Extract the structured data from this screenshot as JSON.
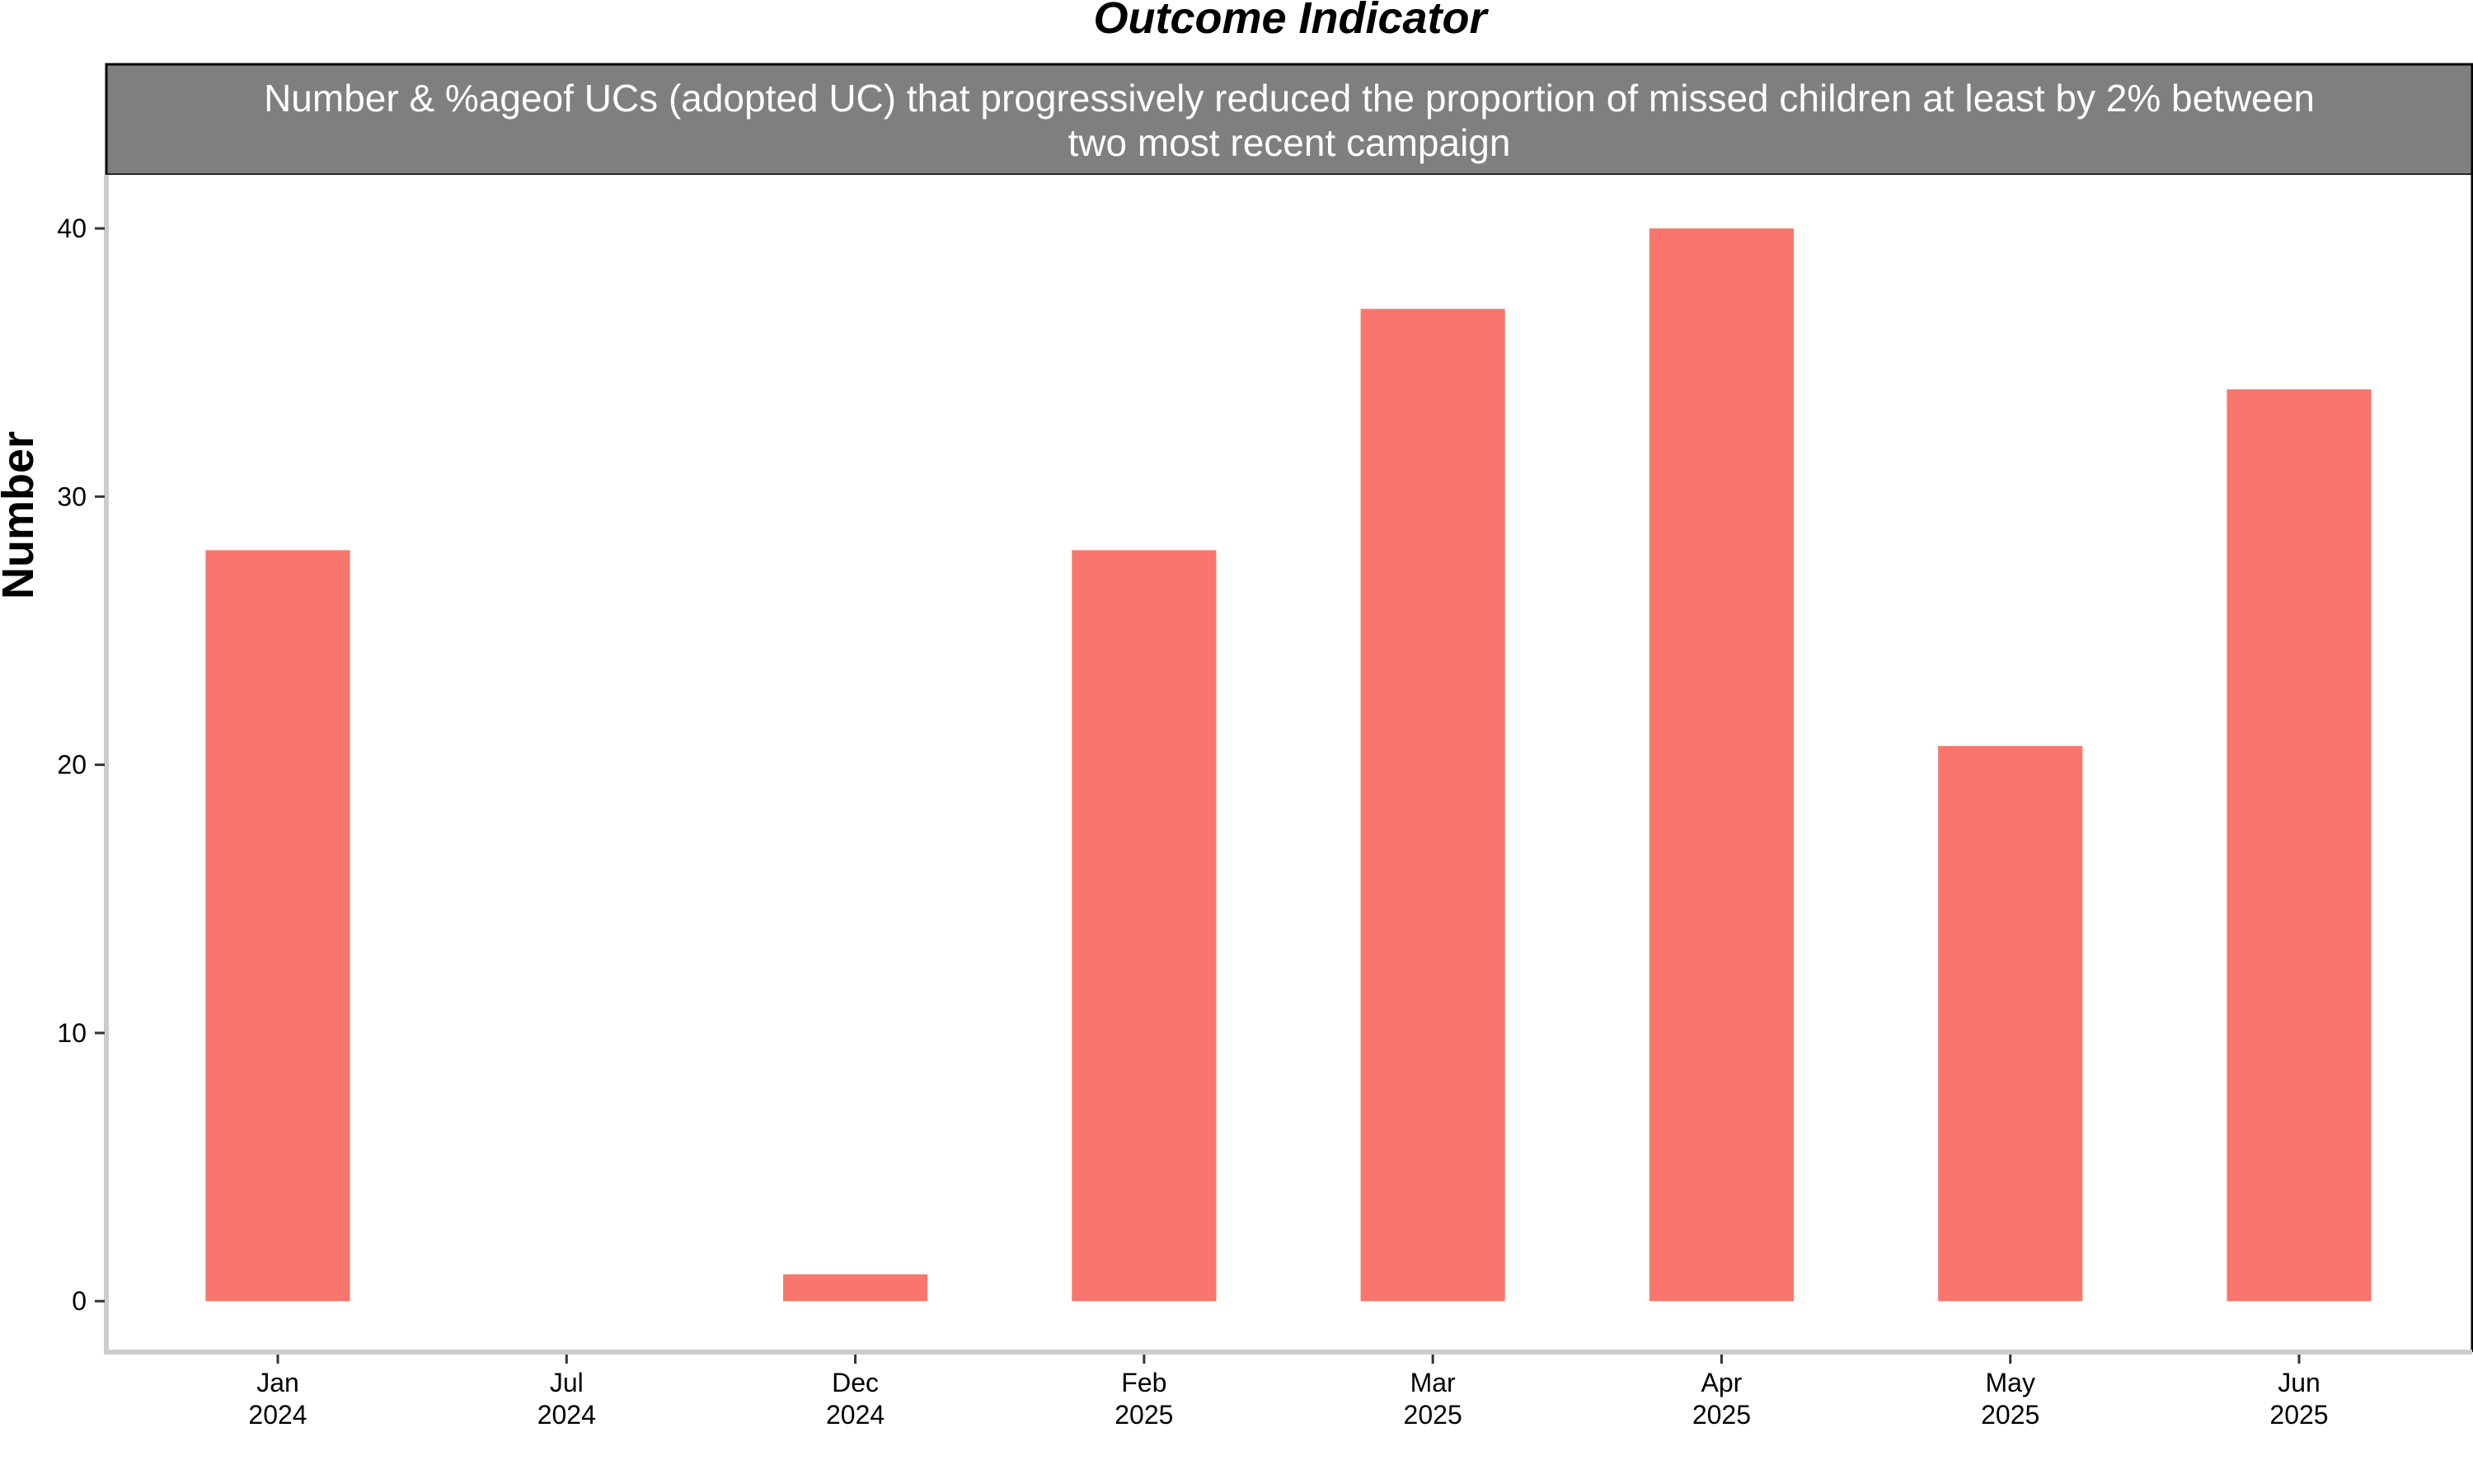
{
  "chart_data": {
    "type": "bar",
    "title": "Outcome Indicator",
    "panel_strip": [
      "Number & %ageof UCs (adopted UC) that progressively reduced the proportion of missed children at least by 2% between",
      "two most recent campaign"
    ],
    "ylabel": "Number",
    "xlabel": "",
    "ylim": [
      -1.9,
      42
    ],
    "yticks": [
      0,
      10,
      20,
      30,
      40
    ],
    "grid": false,
    "legend": "none",
    "categories": [
      {
        "month": "Jan",
        "year": "2024"
      },
      {
        "month": "Jul",
        "year": "2024"
      },
      {
        "month": "Dec",
        "year": "2024"
      },
      {
        "month": "Feb",
        "year": "2025"
      },
      {
        "month": "Mar",
        "year": "2025"
      },
      {
        "month": "Apr",
        "year": "2025"
      },
      {
        "month": "May",
        "year": "2025"
      },
      {
        "month": "Jun",
        "year": "2025"
      }
    ],
    "values": [
      28,
      0,
      1,
      28,
      37,
      40,
      20.7,
      34
    ],
    "colors": {
      "bar": "#F8766D",
      "strip_fill": "#7F7F7F",
      "axis_line": "#CCCCCC",
      "border": "#000000"
    }
  }
}
